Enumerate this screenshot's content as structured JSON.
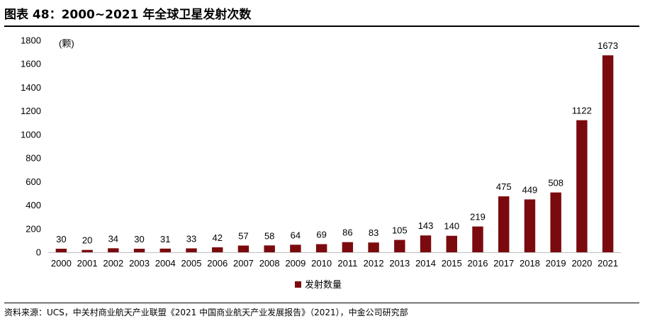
{
  "figure": {
    "title": "图表 48：2000~2021 年全球卫星发射次数",
    "source": "资料来源：UCS，中关村商业航天产业联盟《2021 中国商业航天产业发展报告》（2021），中金公司研究部"
  },
  "colors": {
    "bar": "#7B0A0E",
    "axis": "#bfbfbf"
  },
  "chart_data": {
    "type": "bar",
    "unit_label": "(颗)",
    "categories": [
      "2000",
      "2001",
      "2002",
      "2003",
      "2004",
      "2005",
      "2006",
      "2007",
      "2008",
      "2009",
      "2010",
      "2011",
      "2012",
      "2013",
      "2014",
      "2015",
      "2016",
      "2017",
      "2018",
      "2019",
      "2020",
      "2021"
    ],
    "series": [
      {
        "name": "发射数量",
        "values": [
          30,
          20,
          34,
          30,
          31,
          33,
          42,
          57,
          58,
          64,
          69,
          86,
          83,
          105,
          143,
          140,
          219,
          475,
          449,
          508,
          1122,
          1673
        ]
      }
    ],
    "ylim": [
      0,
      1800
    ],
    "yticks": [
      0,
      200,
      400,
      600,
      800,
      1000,
      1200,
      1400,
      1600,
      1800
    ],
    "grid": false,
    "legend_position": "bottom",
    "data_labels": true
  }
}
